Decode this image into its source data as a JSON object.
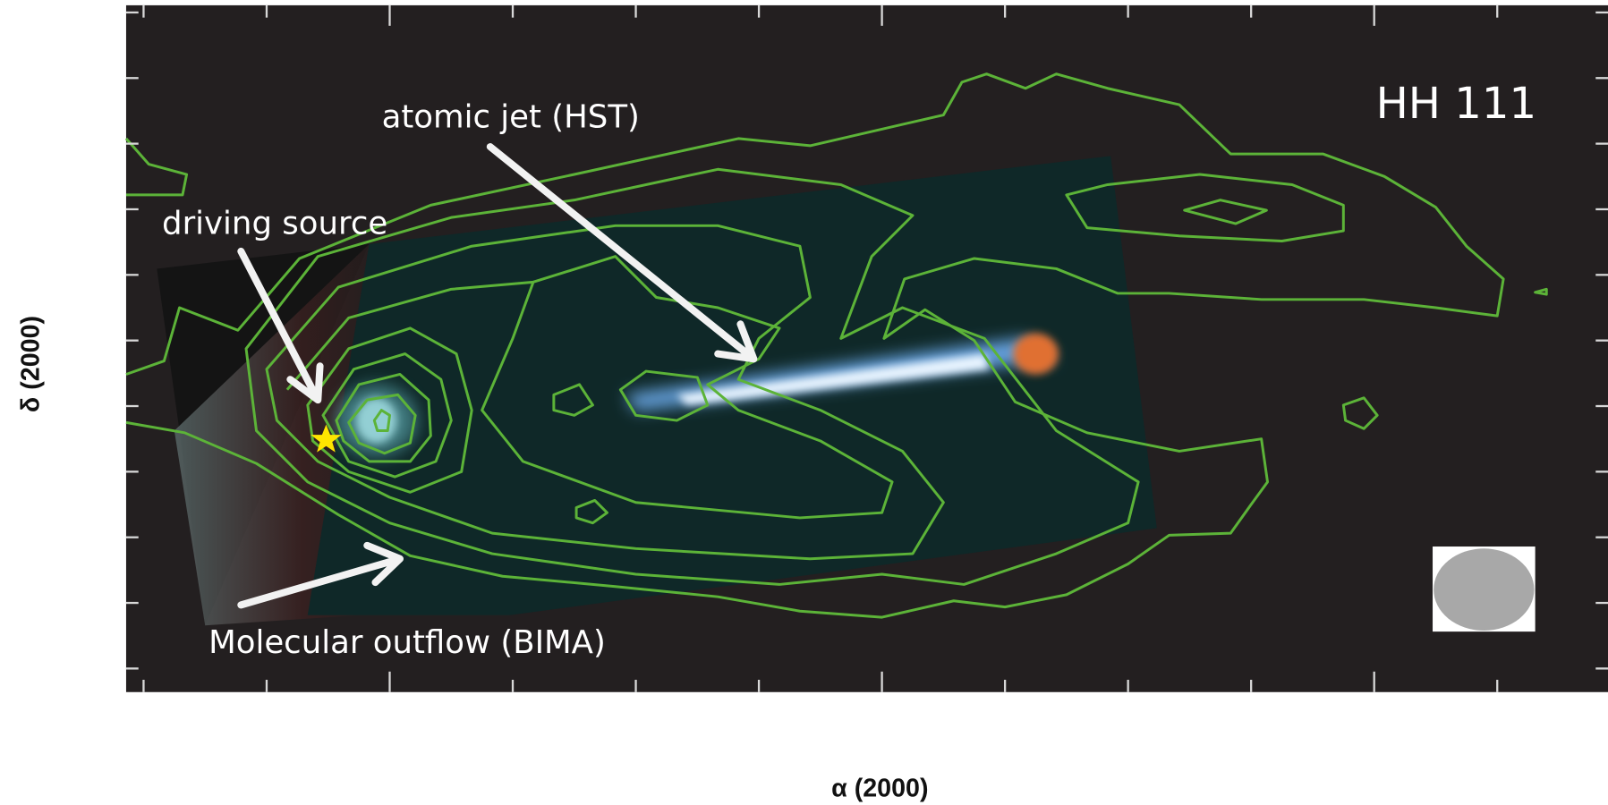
{
  "figure": {
    "object_label": "HH 111",
    "annotations": {
      "jet": "atomic jet (HST)",
      "source": "driving source",
      "outflow": "Molecular outflow (BIMA)"
    },
    "x_label": "α (2000)",
    "y_label": "δ (2000)"
  }
}
